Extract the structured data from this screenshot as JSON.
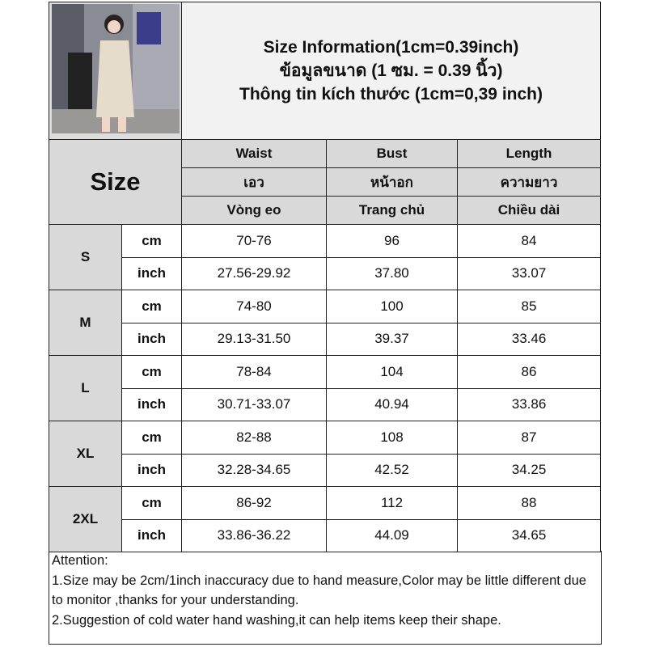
{
  "title_lines": [
    "Size Information(1cm=0.39inch)",
    "ข้อมูลขนาด (1 ซม. = 0.39 นิ้ว)",
    "Thông tin kích thước (1cm=0,39 inch)"
  ],
  "size_label": "Size",
  "columns": [
    {
      "en": "Waist",
      "th": "เอว",
      "vi": "Vòng eo"
    },
    {
      "en": "Bust",
      "th": "หน้าอก",
      "vi": "Trang chủ"
    },
    {
      "en": "Length",
      "th": "ความยาว",
      "vi": "Chiều dài"
    }
  ],
  "rows": [
    {
      "size": "S",
      "cm": [
        "70-76",
        "96",
        "84"
      ],
      "inch": [
        "27.56-29.92",
        "37.80",
        "33.07"
      ]
    },
    {
      "size": "M",
      "cm": [
        "74-80",
        "100",
        "85"
      ],
      "inch": [
        "29.13-31.50",
        "39.37",
        "33.46"
      ]
    },
    {
      "size": "L",
      "cm": [
        "78-84",
        "104",
        "86"
      ],
      "inch": [
        "30.71-33.07",
        "40.94",
        "33.86"
      ]
    },
    {
      "size": "XL",
      "cm": [
        "82-88",
        "108",
        "87"
      ],
      "inch": [
        "32.28-34.65",
        "42.52",
        "34.25"
      ]
    },
    {
      "size": "2XL",
      "cm": [
        "86-92",
        "112",
        "88"
      ],
      "inch": [
        "33.86-36.22",
        "44.09",
        "34.65"
      ]
    }
  ],
  "units": {
    "cm": "cm",
    "inch": "inch"
  },
  "attention": [
    "Attention:",
    "1.Size may be 2cm/1inch inaccuracy due to hand measure,Color may be little different due to monitor ,thanks for your understanding.",
    "2.Suggestion of cold water hand washing,it can help items keep their shape."
  ]
}
